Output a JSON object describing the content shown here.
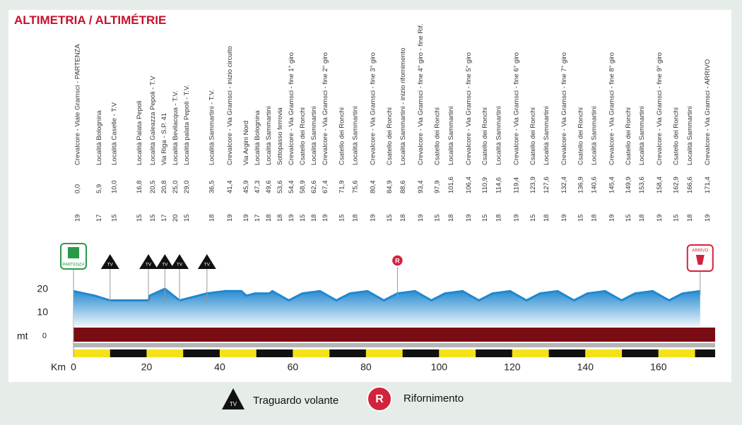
{
  "title": "ALTIMETRIA / ALTIMÉTRIE",
  "waypoints": [
    {
      "alt": 19,
      "km": 0.0,
      "km_label": "0,0",
      "name": "Crevalcore - Viale Gramsci - PARTENZA",
      "color": "#d2233c"
    },
    {
      "alt": 17,
      "km": 5.9,
      "km_label": "5,9",
      "name": "Località Bolognina"
    },
    {
      "alt": 15,
      "km": 10.0,
      "km_label": "10,0",
      "name": "Località Caselle - T.V"
    },
    {
      "alt": 15,
      "km": 16.8,
      "km_label": "16,8",
      "name": "Località Palata Pepoli"
    },
    {
      "alt": 15,
      "km": 20.5,
      "km_label": "20,5",
      "name": "Località Galeazza Pepoli - T.V"
    },
    {
      "alt": 17,
      "km": 20.8,
      "km_label": "20,8",
      "name": "Via Riga - S.P. 41"
    },
    {
      "alt": 20,
      "km": 25.0,
      "km_label": "25,0",
      "name": "Località Bevilacqua - T.V."
    },
    {
      "alt": 15,
      "km": 29.0,
      "km_label": "29,0",
      "name": "Località palata Pepoli - T.V."
    },
    {
      "alt": 18,
      "km": 36.5,
      "km_label": "36,5",
      "name": "Località Sammartini - T.V."
    },
    {
      "alt": 19,
      "km": 41.4,
      "km_label": "41,4",
      "name": "Crevalcore - Via Gramsci - inizio circuito",
      "color": "#2f9ed6"
    },
    {
      "alt": 19,
      "km": 45.9,
      "km_label": "45,9",
      "name": "Via Argini Nord"
    },
    {
      "alt": 17,
      "km": 47.3,
      "km_label": "47,3",
      "name": "Località Bolognina"
    },
    {
      "alt": 18,
      "km": 49.6,
      "km_label": "49,6",
      "name": "Località Sammartini"
    },
    {
      "alt": 18,
      "km": 53.6,
      "km_label": "53,6",
      "name": "Sottopasso ferrovia"
    },
    {
      "alt": 19,
      "km": 54.4,
      "km_label": "54,4",
      "name": "Crevalcore - Via Gramsci - fine 1° giro"
    },
    {
      "alt": 15,
      "km": 58.9,
      "km_label": "58,9",
      "name": "Csatello dei Ronchi"
    },
    {
      "alt": 18,
      "km": 62.6,
      "km_label": "62,6",
      "name": "Località Sammartini"
    },
    {
      "alt": 19,
      "km": 67.4,
      "km_label": "67,4",
      "name": "Crevalcore - Via Gramsci - fine 2° giro"
    },
    {
      "alt": 15,
      "km": 71.9,
      "km_label": "71,9",
      "name": "Csatello dei Ronchi"
    },
    {
      "alt": 18,
      "km": 75.6,
      "km_label": "75,6",
      "name": "Località Sammartini"
    },
    {
      "alt": 19,
      "km": 80.4,
      "km_label": "80,4",
      "name": "Crevalcore - Via Gramsci - fine 3° giro"
    },
    {
      "alt": 15,
      "km": 84.9,
      "km_label": "84,9",
      "name": "Csatello dei Ronchi"
    },
    {
      "alt": 18,
      "km": 88.6,
      "km_label": "88,6",
      "name": "Località Sammartini - inizio rifornimento"
    },
    {
      "alt": 19,
      "km": 93.4,
      "km_label": "93,4",
      "name": "Crevalcore - Via Gramsci - fine 4° giro - fine Rif."
    },
    {
      "alt": 15,
      "km": 97.9,
      "km_label": "97,9",
      "name": "Csatello dei Ronchi"
    },
    {
      "alt": 18,
      "km": 101.6,
      "km_label": "101,6",
      "name": "Località Sammartini"
    },
    {
      "alt": 19,
      "km": 106.4,
      "km_label": "106,4",
      "name": "Crevalcore - Via Gramsci - fine 5° giro"
    },
    {
      "alt": 15,
      "km": 110.9,
      "km_label": "110,9",
      "name": "Csatello dei Ronchi"
    },
    {
      "alt": 18,
      "km": 114.6,
      "km_label": "114,6",
      "name": "Località Sammartini"
    },
    {
      "alt": 19,
      "km": 119.4,
      "km_label": "119,4",
      "name": "Crevalcore - Via Gramsci - fine 6° giro"
    },
    {
      "alt": 15,
      "km": 123.9,
      "km_label": "123,9",
      "name": "Csatello dei Ronchi"
    },
    {
      "alt": 18,
      "km": 127.6,
      "km_label": "127,6",
      "name": "Località Sammartini"
    },
    {
      "alt": 19,
      "km": 132.4,
      "km_label": "132,4",
      "name": "Crevalcore - Via Gramsci - fine 7° giro"
    },
    {
      "alt": 15,
      "km": 136.9,
      "km_label": "136,9",
      "name": "Csatello dei Ronchi"
    },
    {
      "alt": 18,
      "km": 140.6,
      "km_label": "140,6",
      "name": "Località Sammartini"
    },
    {
      "alt": 19,
      "km": 145.4,
      "km_label": "145,4",
      "name": "Crevalcore - Via Gramsci - fine 8° giro"
    },
    {
      "alt": 15,
      "km": 149.9,
      "km_label": "149,9",
      "name": "Csatello dei Ronchi"
    },
    {
      "alt": 18,
      "km": 153.6,
      "km_label": "153,6",
      "name": "Località Sammartini"
    },
    {
      "alt": 19,
      "km": 158.4,
      "km_label": "158,4",
      "name": "Crevalcore - Via Gramsci - fine 9° giro"
    },
    {
      "alt": 15,
      "km": 162.9,
      "km_label": "162,9",
      "name": "Csatello dei Ronchi"
    },
    {
      "alt": 18,
      "km": 166.6,
      "km_label": "166,6",
      "name": "Località Sammartini"
    },
    {
      "alt": 19,
      "km": 171.4,
      "km_label": "171,4",
      "name": "Crevalcore - Via Gramsci - ARRIVO",
      "color": "#d2233c"
    }
  ],
  "profile": {
    "x_unit": "Km",
    "y_unit": "mt",
    "xlim": [
      0,
      175.5
    ],
    "ylim": [
      0,
      20
    ],
    "yticks": [
      0,
      10,
      20
    ],
    "xticks": [
      0,
      20,
      40,
      60,
      80,
      100,
      120,
      140,
      160
    ],
    "sprints_km": [
      10.0,
      20.5,
      25.0,
      29.0,
      36.5
    ],
    "feed_km": 88.6,
    "sprint_symbol": "TV",
    "feed_symbol": "R",
    "start_label": "PARTENZA",
    "finish_label": "ARRIVO"
  },
  "legend": {
    "sprint": "Traguardo volante",
    "feed": "Rifornimento"
  }
}
